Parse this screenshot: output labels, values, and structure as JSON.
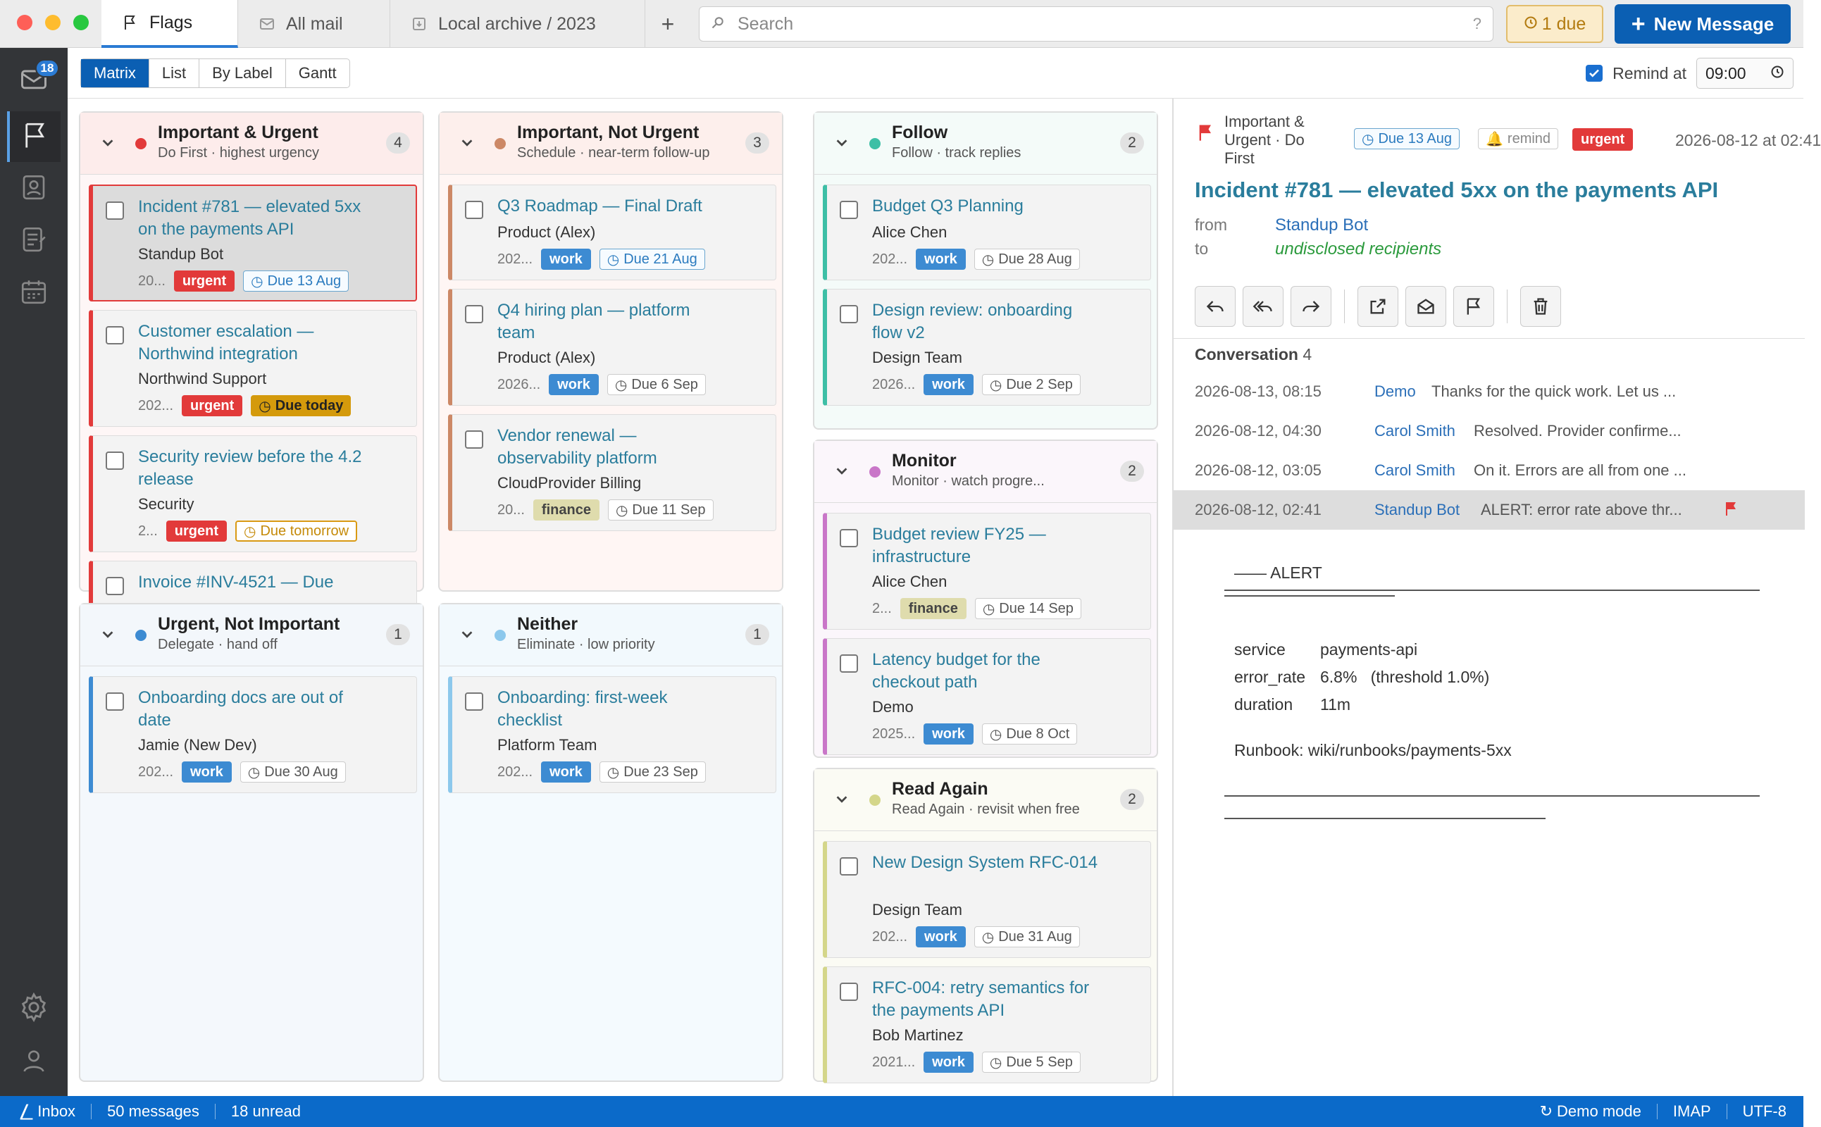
{
  "tabs": [
    {
      "label": "Flags",
      "icon": "flag-icon"
    },
    {
      "label": "All mail",
      "icon": "mail-icon"
    },
    {
      "label": "Local archive / 2023",
      "icon": "archive-icon"
    }
  ],
  "new_tab": "+",
  "search": {
    "placeholder": "Search",
    "help": "?"
  },
  "due_button": "1 due",
  "new_message": "New Message",
  "rail": {
    "inbox_badge": "18"
  },
  "views": [
    "Matrix",
    "List",
    "By Label",
    "Gantt"
  ],
  "active_view": "Matrix",
  "remind": {
    "label": "Remind at",
    "checked": true,
    "time": "09:00"
  },
  "columns": {
    "iu": {
      "title": "Important & Urgent",
      "subtitle": "Do First · highest urgency",
      "count": "4",
      "color": "#e23a3a",
      "cards": [
        {
          "title": "Incident #781 — elevated 5xx on the payments API",
          "from": "Standup Bot",
          "date": "20...",
          "tag": "urgent",
          "due": "Due 13 Aug"
        },
        {
          "title": "Customer escalation — Northwind integration",
          "from": "Northwind Support",
          "date": "202...",
          "tag": "urgent",
          "due": "Due today"
        },
        {
          "title": "Security review before the 4.2 release",
          "from": "Security",
          "date": "2...",
          "tag": "urgent",
          "due": "Due tomorrow"
        },
        {
          "title": "Invoice #INV-4521 — Due"
        }
      ]
    },
    "inu": {
      "title": "Important, Not Urgent",
      "subtitle": "Schedule · near-term follow-up",
      "count": "3",
      "color": "#cc8866",
      "cards": [
        {
          "title": "Q3 Roadmap — Final Draft",
          "from": "Product (Alex)",
          "date": "202...",
          "tag": "work",
          "due": "Due 21 Aug"
        },
        {
          "title": "Q4 hiring plan — platform team",
          "from": "Product (Alex)",
          "date": "2026...",
          "tag": "work",
          "due": "Due 6 Sep"
        },
        {
          "title": "Vendor renewal — observability platform",
          "from": "CloudProvider Billing",
          "date": "20...",
          "tag": "finance",
          "due": "Due 11 Sep"
        }
      ]
    },
    "uni": {
      "title": "Urgent, Not Important",
      "subtitle": "Delegate · hand off",
      "count": "1",
      "color": "#3d8bd2",
      "cards": [
        {
          "title": "Onboarding docs are out of date",
          "from": "Jamie (New Dev)",
          "date": "202...",
          "tag": "work",
          "due": "Due 30 Aug"
        }
      ]
    },
    "neither": {
      "title": "Neither",
      "subtitle": "Eliminate · low priority",
      "count": "1",
      "color": "#8cc8ec",
      "cards": [
        {
          "title": "Onboarding: first-week checklist",
          "from": "Platform Team",
          "date": "202...",
          "tag": "work",
          "due": "Due 23 Sep"
        }
      ]
    },
    "follow": {
      "title": "Follow",
      "subtitle": "Follow · track replies",
      "count": "2",
      "color": "#3dbfa6",
      "cards": [
        {
          "title": "Budget Q3 Planning",
          "from": "Alice Chen",
          "date": "202...",
          "tag": "work",
          "due": "Due 28 Aug"
        },
        {
          "title": "Design review: onboarding flow v2",
          "from": "Design Team",
          "date": "2026...",
          "tag": "work",
          "due": "Due 2 Sep"
        }
      ]
    },
    "monitor": {
      "title": "Monitor",
      "subtitle": "Monitor · watch progre...",
      "count": "2",
      "color": "#c976c8",
      "cards": [
        {
          "title": "Budget review FY25 — infrastructure",
          "from": "Alice Chen",
          "date": "2...",
          "tag": "finance",
          "due": "Due 14 Sep"
        },
        {
          "title": "Latency budget for the checkout path",
          "from": "Demo",
          "date": "2025...",
          "tag": "work",
          "due": "Due 8 Oct"
        }
      ]
    },
    "readagain": {
      "title": "Read Again",
      "subtitle": "Read Again · revisit when free",
      "count": "2",
      "color": "#d4d68a",
      "cards": [
        {
          "title": "New Design System RFC-014",
          "from": "Design Team",
          "date": "202...",
          "tag": "work",
          "due": "Due 31 Aug"
        },
        {
          "title": "RFC-004: retry semantics for the payments API",
          "from": "Bob Martinez",
          "date": "2021...",
          "tag": "work",
          "due": "Due 5 Sep"
        }
      ]
    }
  },
  "reader": {
    "quadrant": "Important & Urgent · Do First",
    "due": "Due 13 Aug",
    "remind": "remind",
    "tag": "urgent",
    "timestamp": "2026-08-12 at 02:41",
    "subject": "Incident #781 — elevated 5xx on the payments API",
    "from_label": "from",
    "from": "Standup Bot",
    "to_label": "to",
    "to": "undisclosed recipients",
    "conversation_label": "Conversation",
    "conversation_count": "4",
    "conversation": [
      {
        "date": "2026-08-13, 08:15",
        "name": "Demo",
        "preview": "Thanks for the quick work. Let us ..."
      },
      {
        "date": "2026-08-12, 04:30",
        "name": "Carol Smith",
        "preview": "Resolved. Provider confirme..."
      },
      {
        "date": "2026-08-12, 03:05",
        "name": "Carol Smith",
        "preview": "On it. Errors are all from one ..."
      },
      {
        "date": "2026-08-12, 02:41",
        "name": "Standup Bot",
        "preview": "ALERT: error rate above thr..."
      }
    ],
    "body": {
      "alert": "—— ALERT",
      "service_k": "service",
      "service_v": "payments-api",
      "rate_k": "error_rate",
      "rate_v": "6.8%   (threshold 1.0%)",
      "dur_k": "duration",
      "dur_v": "11m",
      "runbook": "Runbook: wiki/runbooks/payments-5xx"
    }
  },
  "status": {
    "folder": "Inbox",
    "messages": "50 messages",
    "unread": "18 unread",
    "mode": "Demo mode",
    "protocol": "IMAP",
    "encoding": "UTF-8"
  }
}
